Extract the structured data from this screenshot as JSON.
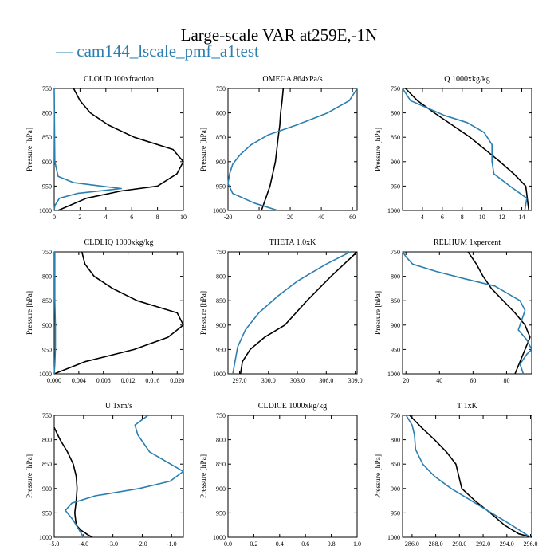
{
  "title": "Large-scale VAR at259E,-1N",
  "legend": {
    "label": "cam144_lscale_pmf_a1test",
    "dash": "—",
    "color": "#2a7fb0"
  },
  "colors": {
    "model": "#000000",
    "test": "#2a7fb0",
    "frame": "#000000"
  },
  "chart_data": [
    {
      "type": "line",
      "title": "CLOUD 100xfraction",
      "ylabel": "Pressure [hPa]",
      "xlim": [
        0,
        10
      ],
      "ylim": [
        1000,
        750
      ],
      "xticks": [
        0,
        2,
        4,
        6,
        8,
        10
      ],
      "xtick_labels": [
        "0",
        "2",
        "4",
        "6",
        "8",
        "10"
      ],
      "yticks": [
        750,
        800,
        850,
        900,
        950,
        1000
      ],
      "ytick_labels": [
        "750",
        "800",
        "850",
        "900",
        "950",
        "1000"
      ],
      "series": [
        {
          "x": [
            1.5,
            2.0,
            2.8,
            4.2,
            6.2,
            9.2,
            10.0,
            9.5,
            8.0,
            5.2,
            2.5,
            0.3
          ],
          "y": [
            750,
            775,
            800,
            825,
            850,
            875,
            900,
            925,
            950,
            960,
            975,
            1000
          ]
        },
        {
          "x": [
            0,
            0.05,
            0.3,
            1.5,
            5.2,
            1.8,
            0.4,
            0.05,
            0
          ],
          "y": [
            750,
            900,
            930,
            943,
            955,
            965,
            975,
            990,
            1000
          ]
        }
      ]
    },
    {
      "type": "line",
      "title": "OMEGA 864xPa/s",
      "ylabel": "Pressure [hPa]",
      "xlim": [
        -20,
        63
      ],
      "ylim": [
        1000,
        750
      ],
      "xticks": [
        -20,
        0,
        20,
        40,
        60
      ],
      "xtick_labels": [
        "-20",
        "0",
        "20",
        "40",
        "60"
      ],
      "yticks": [
        750,
        800,
        850,
        900,
        950,
        1000
      ],
      "ytick_labels": [
        "750",
        "800",
        "850",
        "900",
        "950",
        "1000"
      ],
      "series": [
        {
          "x": [
            15.5,
            14.8,
            13.8,
            13.3,
            12.3,
            10.5,
            7.0,
            4.3,
            1.5
          ],
          "y": [
            750,
            775,
            800,
            825,
            850,
            900,
            950,
            975,
            1000
          ]
        },
        {
          "x": [
            63,
            58,
            44,
            24,
            6,
            -5,
            -12,
            -17,
            -19,
            -20,
            -17,
            -3,
            12
          ],
          "y": [
            750,
            775,
            800,
            825,
            845,
            865,
            885,
            905,
            925,
            945,
            965,
            985,
            1000
          ]
        }
      ]
    },
    {
      "type": "line",
      "title": "Q 1000xkg/kg",
      "ylabel": "Pressure [hPa]",
      "xlim": [
        2,
        15
      ],
      "ylim": [
        1000,
        750
      ],
      "xticks": [
        4,
        6,
        8,
        10,
        12,
        14
      ],
      "xtick_labels": [
        "4",
        "6",
        "8",
        "10",
        "12",
        "14"
      ],
      "yticks": [
        750,
        800,
        850,
        900,
        950,
        1000
      ],
      "ytick_labels": [
        "750",
        "800",
        "850",
        "900",
        "950",
        "1000"
      ],
      "series": [
        {
          "x": [
            2.3,
            3.5,
            5.2,
            7.0,
            8.8,
            10.3,
            11.8,
            13.2,
            14.4,
            14.7
          ],
          "y": [
            750,
            775,
            800,
            825,
            850,
            875,
            900,
            925,
            950,
            1000
          ]
        },
        {
          "x": [
            2.0,
            2.8,
            4.5,
            6.2,
            8.5,
            10.2,
            11.0,
            11.0,
            11.2,
            12.8,
            14.5,
            14.3
          ],
          "y": [
            750,
            775,
            790,
            805,
            820,
            840,
            865,
            900,
            925,
            950,
            975,
            1000
          ]
        }
      ]
    },
    {
      "type": "line",
      "title": "CLDLIQ 1000xkg/kg",
      "ylabel": "Pressure [hPa]",
      "xlim": [
        0,
        0.021
      ],
      "ylim": [
        1000,
        750
      ],
      "xticks": [
        0,
        0.004,
        0.008,
        0.012,
        0.016,
        0.02
      ],
      "xtick_labels": [
        "0.000",
        "0.004",
        "0.008",
        "0.012",
        "0.016",
        "0.020"
      ],
      "yticks": [
        750,
        800,
        850,
        900,
        950,
        1000
      ],
      "ytick_labels": [
        "750",
        "800",
        "850",
        "900",
        "950",
        "1000"
      ],
      "series": [
        {
          "x": [
            0.0045,
            0.005,
            0.0065,
            0.0095,
            0.0135,
            0.02,
            0.021,
            0.0185,
            0.013,
            0.005,
            0.0
          ],
          "y": [
            750,
            775,
            800,
            825,
            850,
            875,
            900,
            925,
            950,
            975,
            1000
          ]
        },
        {
          "x": [
            0.0001,
            0.0001,
            0.0002,
            0.0002,
            0.0001,
            0.0
          ],
          "y": [
            750,
            850,
            900,
            950,
            980,
            1000
          ]
        }
      ]
    },
    {
      "type": "line",
      "title": "THETA 1.0xK",
      "ylabel": "Pressure [hPa]",
      "xlim": [
        295.8,
        309.2
      ],
      "ylim": [
        1000,
        750
      ],
      "xticks": [
        297,
        300,
        303,
        306,
        309
      ],
      "xtick_labels": [
        "297.0",
        "300.0",
        "303.0",
        "306.0",
        "309.0"
      ],
      "yticks": [
        750,
        800,
        850,
        900,
        950,
        1000
      ],
      "ytick_labels": [
        "750",
        "800",
        "850",
        "900",
        "950",
        "1000"
      ],
      "series": [
        {
          "x": [
            309.2,
            306.5,
            304.0,
            301.7,
            299.6,
            298.1,
            297.3,
            297.1
          ],
          "y": [
            750,
            800,
            850,
            900,
            925,
            950,
            975,
            1000
          ]
        },
        {
          "x": [
            308.5,
            306.0,
            303.0,
            301.0,
            299.0,
            297.6,
            296.8,
            296.3
          ],
          "y": [
            750,
            775,
            810,
            840,
            875,
            910,
            945,
            1000
          ]
        }
      ]
    },
    {
      "type": "line",
      "title": "RELHUM 1xpercent",
      "ylabel": "Pressure [hPa]",
      "xlim": [
        18,
        95
      ],
      "ylim": [
        1000,
        750
      ],
      "xticks": [
        20,
        40,
        60,
        80
      ],
      "xtick_labels": [
        "20",
        "40",
        "60",
        "80"
      ],
      "yticks": [
        750,
        800,
        850,
        900,
        950,
        1000
      ],
      "ytick_labels": [
        "750",
        "800",
        "850",
        "900",
        "950",
        "1000"
      ],
      "series": [
        {
          "x": [
            57,
            62,
            66,
            71,
            78,
            85,
            91,
            94,
            91,
            85
          ],
          "y": [
            750,
            775,
            800,
            825,
            850,
            875,
            900,
            925,
            950,
            1000
          ]
        },
        {
          "x": [
            18,
            20,
            24,
            38,
            55,
            73,
            88,
            91,
            89,
            87,
            92,
            95,
            92,
            88,
            90
          ],
          "y": [
            750,
            760,
            775,
            790,
            805,
            820,
            850,
            870,
            890,
            910,
            930,
            950,
            960,
            980,
            1000
          ]
        }
      ]
    },
    {
      "type": "line",
      "title": "U 1xm/s",
      "ylabel": "Pressure [hPa]",
      "xlim": [
        -5.0,
        -0.6
      ],
      "ylim": [
        1000,
        750
      ],
      "xticks": [
        -5.0,
        -4.0,
        -3.0,
        -2.0,
        -1.0
      ],
      "xtick_labels": [
        "-5.0",
        "-4.0",
        "-3.0",
        "-2.0",
        "-1.0"
      ],
      "yticks": [
        750,
        800,
        850,
        900,
        950,
        1000
      ],
      "ytick_labels": [
        "750",
        "800",
        "850",
        "900",
        "950",
        "1000"
      ],
      "series": [
        {
          "x": [
            -5.0,
            -4.8,
            -4.55,
            -4.35,
            -4.25,
            -4.22,
            -4.25,
            -4.3,
            -4.25,
            -4.1,
            -3.85,
            -3.7
          ],
          "y": [
            775,
            800,
            825,
            850,
            875,
            900,
            925,
            950,
            975,
            985,
            995,
            1000
          ]
        },
        {
          "x": [
            -1.8,
            -2.25,
            -2.15,
            -1.75,
            -0.6,
            -1.05,
            -2.1,
            -3.6,
            -4.4,
            -4.62,
            -4.35,
            -4.0
          ],
          "y": [
            750,
            770,
            790,
            825,
            865,
            885,
            900,
            915,
            930,
            945,
            965,
            1000
          ]
        }
      ]
    },
    {
      "type": "line",
      "title": "CLDICE 1000xkg/kg",
      "ylabel": "Pressure [hPa]",
      "xlim": [
        0,
        1
      ],
      "ylim": [
        1000,
        750
      ],
      "xticks": [
        0,
        0.2,
        0.4,
        0.6,
        0.8,
        1.0
      ],
      "xtick_labels": [
        "0.0",
        "0.2",
        "0.4",
        "0.6",
        "0.8",
        "1.0"
      ],
      "yticks": [
        750,
        800,
        850,
        900,
        950,
        1000
      ],
      "ytick_labels": [
        "750",
        "800",
        "850",
        "900",
        "950",
        "1000"
      ],
      "series": []
    },
    {
      "type": "line",
      "title": "T 1xK",
      "ylabel": "Pressure [hPa]",
      "xlim": [
        285.2,
        296.1
      ],
      "ylim": [
        1000,
        750
      ],
      "xticks": [
        286,
        288,
        290,
        292,
        294,
        296
      ],
      "xtick_labels": [
        "286.0",
        "288.0",
        "290.0",
        "292.0",
        "294.0",
        "296.0"
      ],
      "yticks": [
        750,
        800,
        850,
        900,
        950,
        1000
      ],
      "ytick_labels": [
        "750",
        "800",
        "850",
        "900",
        "950",
        "1000"
      ],
      "series": [
        {
          "x": [
            285.8,
            286.8,
            287.9,
            288.9,
            289.7,
            290.2,
            291.3,
            292.6,
            293.8,
            295.0,
            296.1
          ],
          "y": [
            750,
            775,
            800,
            825,
            850,
            900,
            925,
            950,
            975,
            993,
            1000
          ]
        },
        {
          "x": [
            285.5,
            286.0,
            286.2,
            286.3,
            286.9,
            287.9,
            289.3,
            291.0,
            292.7,
            294.4,
            296.0
          ],
          "y": [
            750,
            770,
            790,
            820,
            850,
            875,
            900,
            925,
            950,
            975,
            1000
          ]
        }
      ]
    }
  ]
}
